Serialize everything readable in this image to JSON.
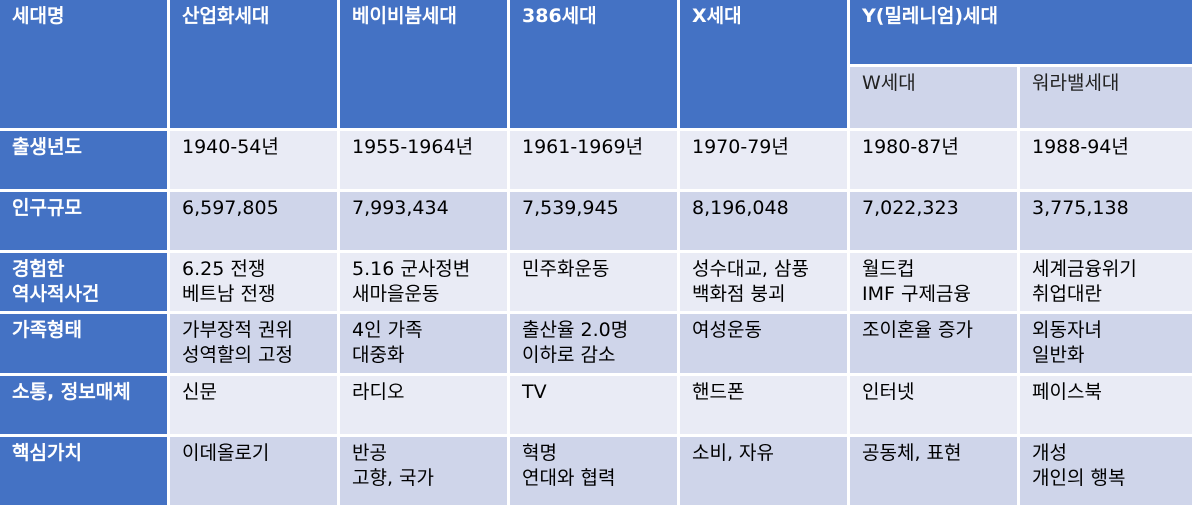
{
  "table": {
    "header": {
      "corner": "세대명",
      "generations": [
        "산업화세대",
        "베이비붐세대",
        "386세대",
        "X세대"
      ],
      "y_generation": "Y(밀레니엄)세대",
      "y_sub": [
        "W세대",
        "워라밸세대"
      ]
    },
    "rows": [
      {
        "label": "출생년도",
        "cells": [
          "1940-54년",
          "1955-1964년",
          "1961-1969년",
          "1970-79년",
          "1980-87년",
          "1988-94년"
        ]
      },
      {
        "label": "인구규모",
        "cells": [
          "6,597,805",
          "7,993,434",
          "7,539,945",
          "8,196,048",
          "7,022,323",
          "3,775,138"
        ]
      },
      {
        "label": "경험한\n역사적사건",
        "cells": [
          "6.25 전쟁\n베트남 전쟁",
          "5.16 군사정변\n새마을운동",
          "민주화운동",
          "성수대교, 삼풍\n백화점 붕괴",
          "월드컵\nIMF 구제금융",
          "세계금융위기\n취업대란"
        ]
      },
      {
        "label": "가족형태",
        "cells": [
          "가부장적 권위\n성역할의 고정",
          "4인 가족\n대중화",
          "출산율 2.0명\n이하로 감소",
          "여성운동",
          "조이혼율 증가",
          "외동자녀\n일반화"
        ]
      },
      {
        "label": "소통, 정보매체",
        "cells": [
          "신문",
          "라디오",
          "TV",
          "핸드폰",
          "인터넷",
          "페이스북"
        ]
      },
      {
        "label": "핵심가치",
        "cells": [
          "이데올로기",
          "반공\n고향, 국가",
          "혁명\n연대와 협력",
          "소비, 자유",
          "공동체, 표현",
          "개성\n개인의 행복"
        ]
      }
    ]
  }
}
